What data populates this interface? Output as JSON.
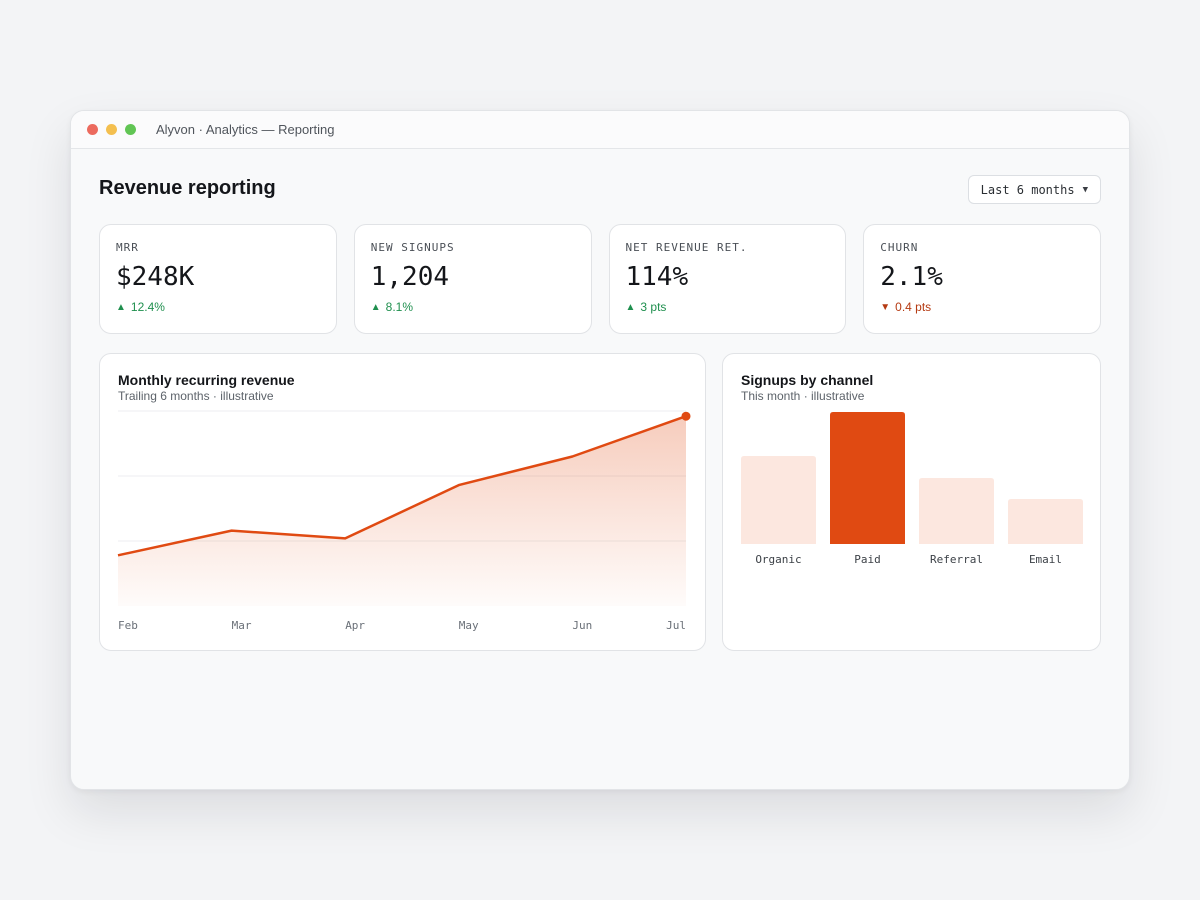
{
  "window": {
    "title": "Alyvon · Analytics — Reporting"
  },
  "page": {
    "title": "Revenue reporting",
    "range_select": {
      "value": "Last 6 months",
      "icon": "chevron-down-icon"
    }
  },
  "kpis": [
    {
      "label": "MRR",
      "value": "$248K",
      "delta": "12.4%",
      "direction": "up"
    },
    {
      "label": "NEW SIGNUPS",
      "value": "1,204",
      "delta": "8.1%",
      "direction": "up"
    },
    {
      "label": "NET REVENUE RET.",
      "value": "114%",
      "delta": "3 pts",
      "direction": "up"
    },
    {
      "label": "CHURN",
      "value": "2.1%",
      "delta": "0.4 pts",
      "direction": "down"
    }
  ],
  "colors": {
    "accent": "#e04a12",
    "accent_soft": "#fce7df",
    "positive": "#1f8f4e",
    "negative": "#b53a12"
  },
  "revenue_panel": {
    "title": "Monthly recurring revenue",
    "subtitle": "Trailing 6 months · illustrative"
  },
  "channels_panel": {
    "title": "Signups by channel",
    "subtitle": "This month · illustrative"
  },
  "chart_data": [
    {
      "type": "area",
      "title": "Monthly recurring revenue",
      "subtitle": "Trailing 6 months · illustrative",
      "categories": [
        "Feb",
        "Mar",
        "Apr",
        "May",
        "Jun",
        "Jul"
      ],
      "series": [
        {
          "values": [
            0.39,
            0.58,
            0.52,
            0.93,
            1.15,
            1.46
          ]
        }
      ],
      "ylim": [
        0,
        1.5
      ],
      "grid": true,
      "highlight_last_point": true
    },
    {
      "type": "bar",
      "title": "Signups by channel",
      "subtitle": "This month · illustrative",
      "categories": [
        "Organic",
        "Paid",
        "Referral",
        "Email"
      ],
      "values": [
        88,
        132,
        66,
        45
      ],
      "highlight": "Paid",
      "ylim": [
        0,
        132
      ]
    }
  ]
}
